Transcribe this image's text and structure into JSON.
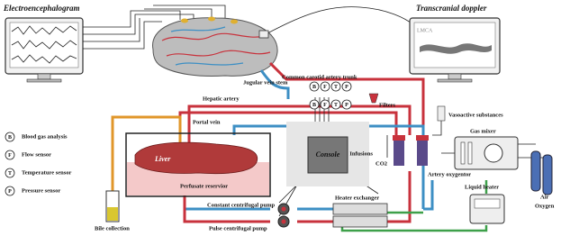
{
  "header": {
    "left_title": "Electroencephalogram",
    "right_title": "Transcranial doppler",
    "screen_label": "LMCA"
  },
  "labels": {
    "carotid": "Common carotid artery trunk",
    "jugular": "Jugular vein stem",
    "hepatic": "Hepatic artery",
    "portal": "Portal vein",
    "filters": "Filters",
    "vasoactive": "Vasoactive substances",
    "gas_mixer": "Gas mixer",
    "infusions": "Infusions",
    "co2": "CO2",
    "oxygenator": "Artery oxygentor",
    "liver": "Liver",
    "console": "Console",
    "reservoir": "Perfusate reservior",
    "heater_exchanger": "Heater exchanger",
    "liquid_heater": "Liquid heater",
    "air": "Air",
    "oxygen": "Oxygen",
    "constant_pump": "Constant centrifugal pump",
    "pulse_pump": "Pulse centrifugal pump",
    "bile": "Bile collection"
  },
  "sensor_rows": [
    [
      "B",
      "F",
      "T",
      "P"
    ],
    [
      "B",
      "F",
      "T",
      "P"
    ]
  ],
  "legend": {
    "items": [
      {
        "symbol": "B",
        "text": "Blood gas analysis"
      },
      {
        "symbol": "F",
        "text": "Flow sensor"
      },
      {
        "symbol": "T",
        "text": "Temperature sensor"
      },
      {
        "symbol": "P",
        "text": "Pressure sensor"
      }
    ]
  }
}
